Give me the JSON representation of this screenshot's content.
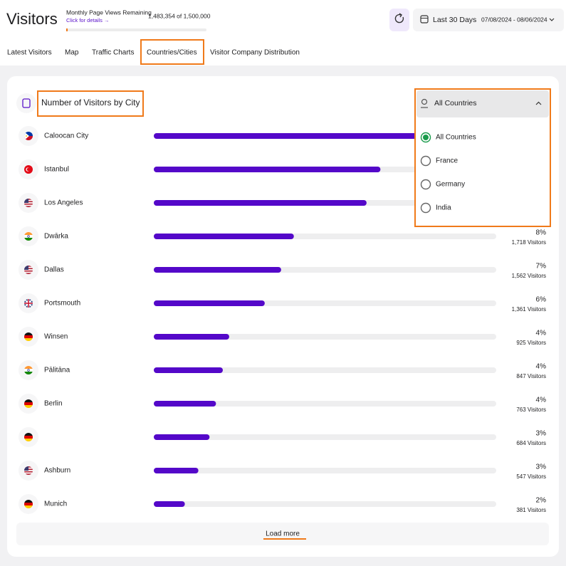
{
  "header": {
    "title": "Visitors",
    "quota_label": "Monthly Page Views Remaining",
    "quota_link": "Click for details →",
    "quota_text": "1,483,354 of 1,500,000",
    "date_label": "Last 30 Days",
    "date_range": "07/08/2024 - 08/06/2024"
  },
  "tabs": [
    "Latest Visitors",
    "Map",
    "Traffic Charts",
    "Countries/Cities",
    "Visitor Company Distribution"
  ],
  "active_tab": 3,
  "card": {
    "title": "Number of Visitors by City",
    "xlim": [
      0,
      4200
    ],
    "rows": [
      {
        "city": "Caloocan City",
        "value": 3270
      },
      {
        "city": "Istanbul",
        "value": 2780
      },
      {
        "city": "Los Angeles",
        "value": 2610
      },
      {
        "city": "Dwārka",
        "value": 1718,
        "percent": "8%",
        "visitors": "1,718 Visitors"
      },
      {
        "city": "Dallas",
        "value": 1562,
        "percent": "7%",
        "visitors": "1,562 Visitors"
      },
      {
        "city": "Portsmouth",
        "value": 1361,
        "percent": "6%",
        "visitors": "1,361 Visitors"
      },
      {
        "city": "Winsen",
        "value": 925,
        "percent": "4%",
        "visitors": "925 Visitors"
      },
      {
        "city": "Pālitāna",
        "value": 847,
        "percent": "4%",
        "visitors": "847 Visitors"
      },
      {
        "city": "Berlin",
        "value": 763,
        "percent": "4%",
        "visitors": "763 Visitors"
      },
      {
        "city": null,
        "value": 684,
        "percent": "3%",
        "visitors": "684 Visitors"
      },
      {
        "city": "Ashburn",
        "value": 547,
        "percent": "3%",
        "visitors": "547 Visitors"
      },
      {
        "city": "Munich",
        "value": 381,
        "percent": "2%",
        "visitors": "381 Visitors"
      }
    ],
    "load_more": "Load more"
  },
  "dropdown": {
    "selected": "All Countries",
    "options": [
      "All Countries",
      "France",
      "Germany",
      "India"
    ],
    "checked": 0
  }
}
